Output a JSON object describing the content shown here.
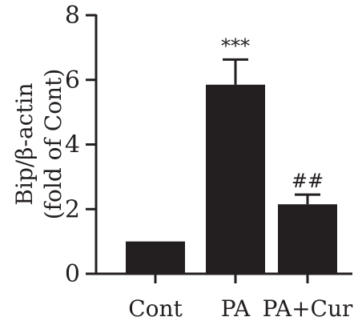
{
  "chart_data": {
    "type": "bar",
    "categories": [
      "Cont",
      "PA",
      "PA+Cur"
    ],
    "values": [
      1.0,
      5.85,
      2.15
    ],
    "errors": [
      0.0,
      0.78,
      0.3
    ],
    "annotations": [
      "",
      "***",
      "##"
    ],
    "ylabel_line1": "Bip/β-actin",
    "ylabel_line2": "(fold of Cont)",
    "xlabel": "",
    "ylim": [
      0,
      8
    ],
    "yticks": [
      0,
      2,
      4,
      6,
      8
    ],
    "bar_color": "#231f20",
    "grid": false
  }
}
